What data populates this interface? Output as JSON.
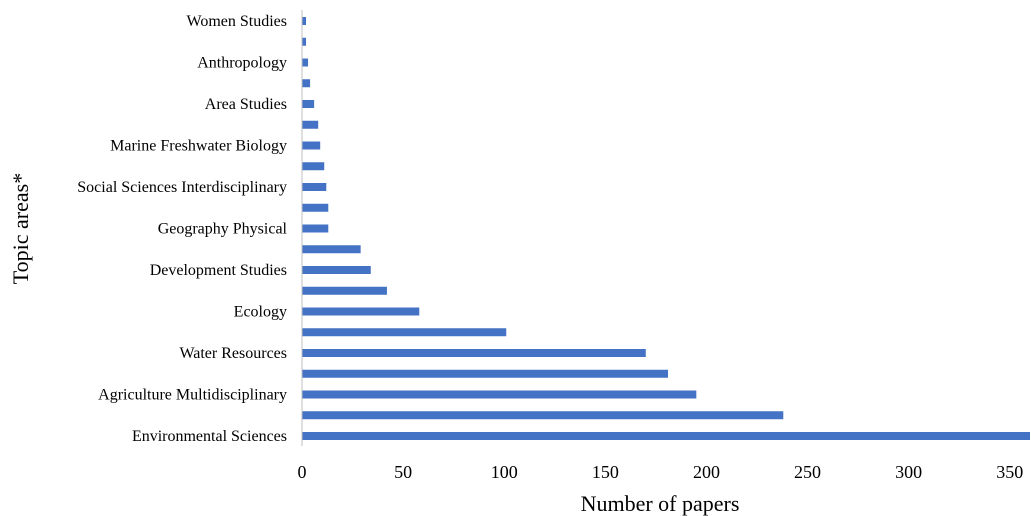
{
  "chart_data": {
    "type": "bar",
    "orientation": "horizontal",
    "xlabel": "Number of papers",
    "ylabel": "Topic areas*",
    "xlim": [
      0,
      360
    ],
    "xticks": [
      0,
      50,
      100,
      150,
      200,
      250,
      300,
      350
    ],
    "grid": false,
    "legend": "none",
    "bar_color": "#4472C4",
    "categories": [
      "Environmental Sciences",
      "",
      "Agriculture Multidisciplinary",
      "",
      "Water Resources",
      "",
      "Ecology",
      "",
      "Development Studies",
      "",
      "Geography Physical",
      "",
      "Social Sciences Interdisciplinary",
      "",
      "Marine Freshwater Biology",
      "",
      "Area Studies",
      "",
      "Anthropology",
      "",
      "Women Studies"
    ],
    "values": [
      360,
      238,
      195,
      181,
      170,
      101,
      58,
      42,
      34,
      29,
      13,
      13,
      12,
      11,
      9,
      8,
      6,
      4,
      3,
      2,
      2
    ]
  }
}
